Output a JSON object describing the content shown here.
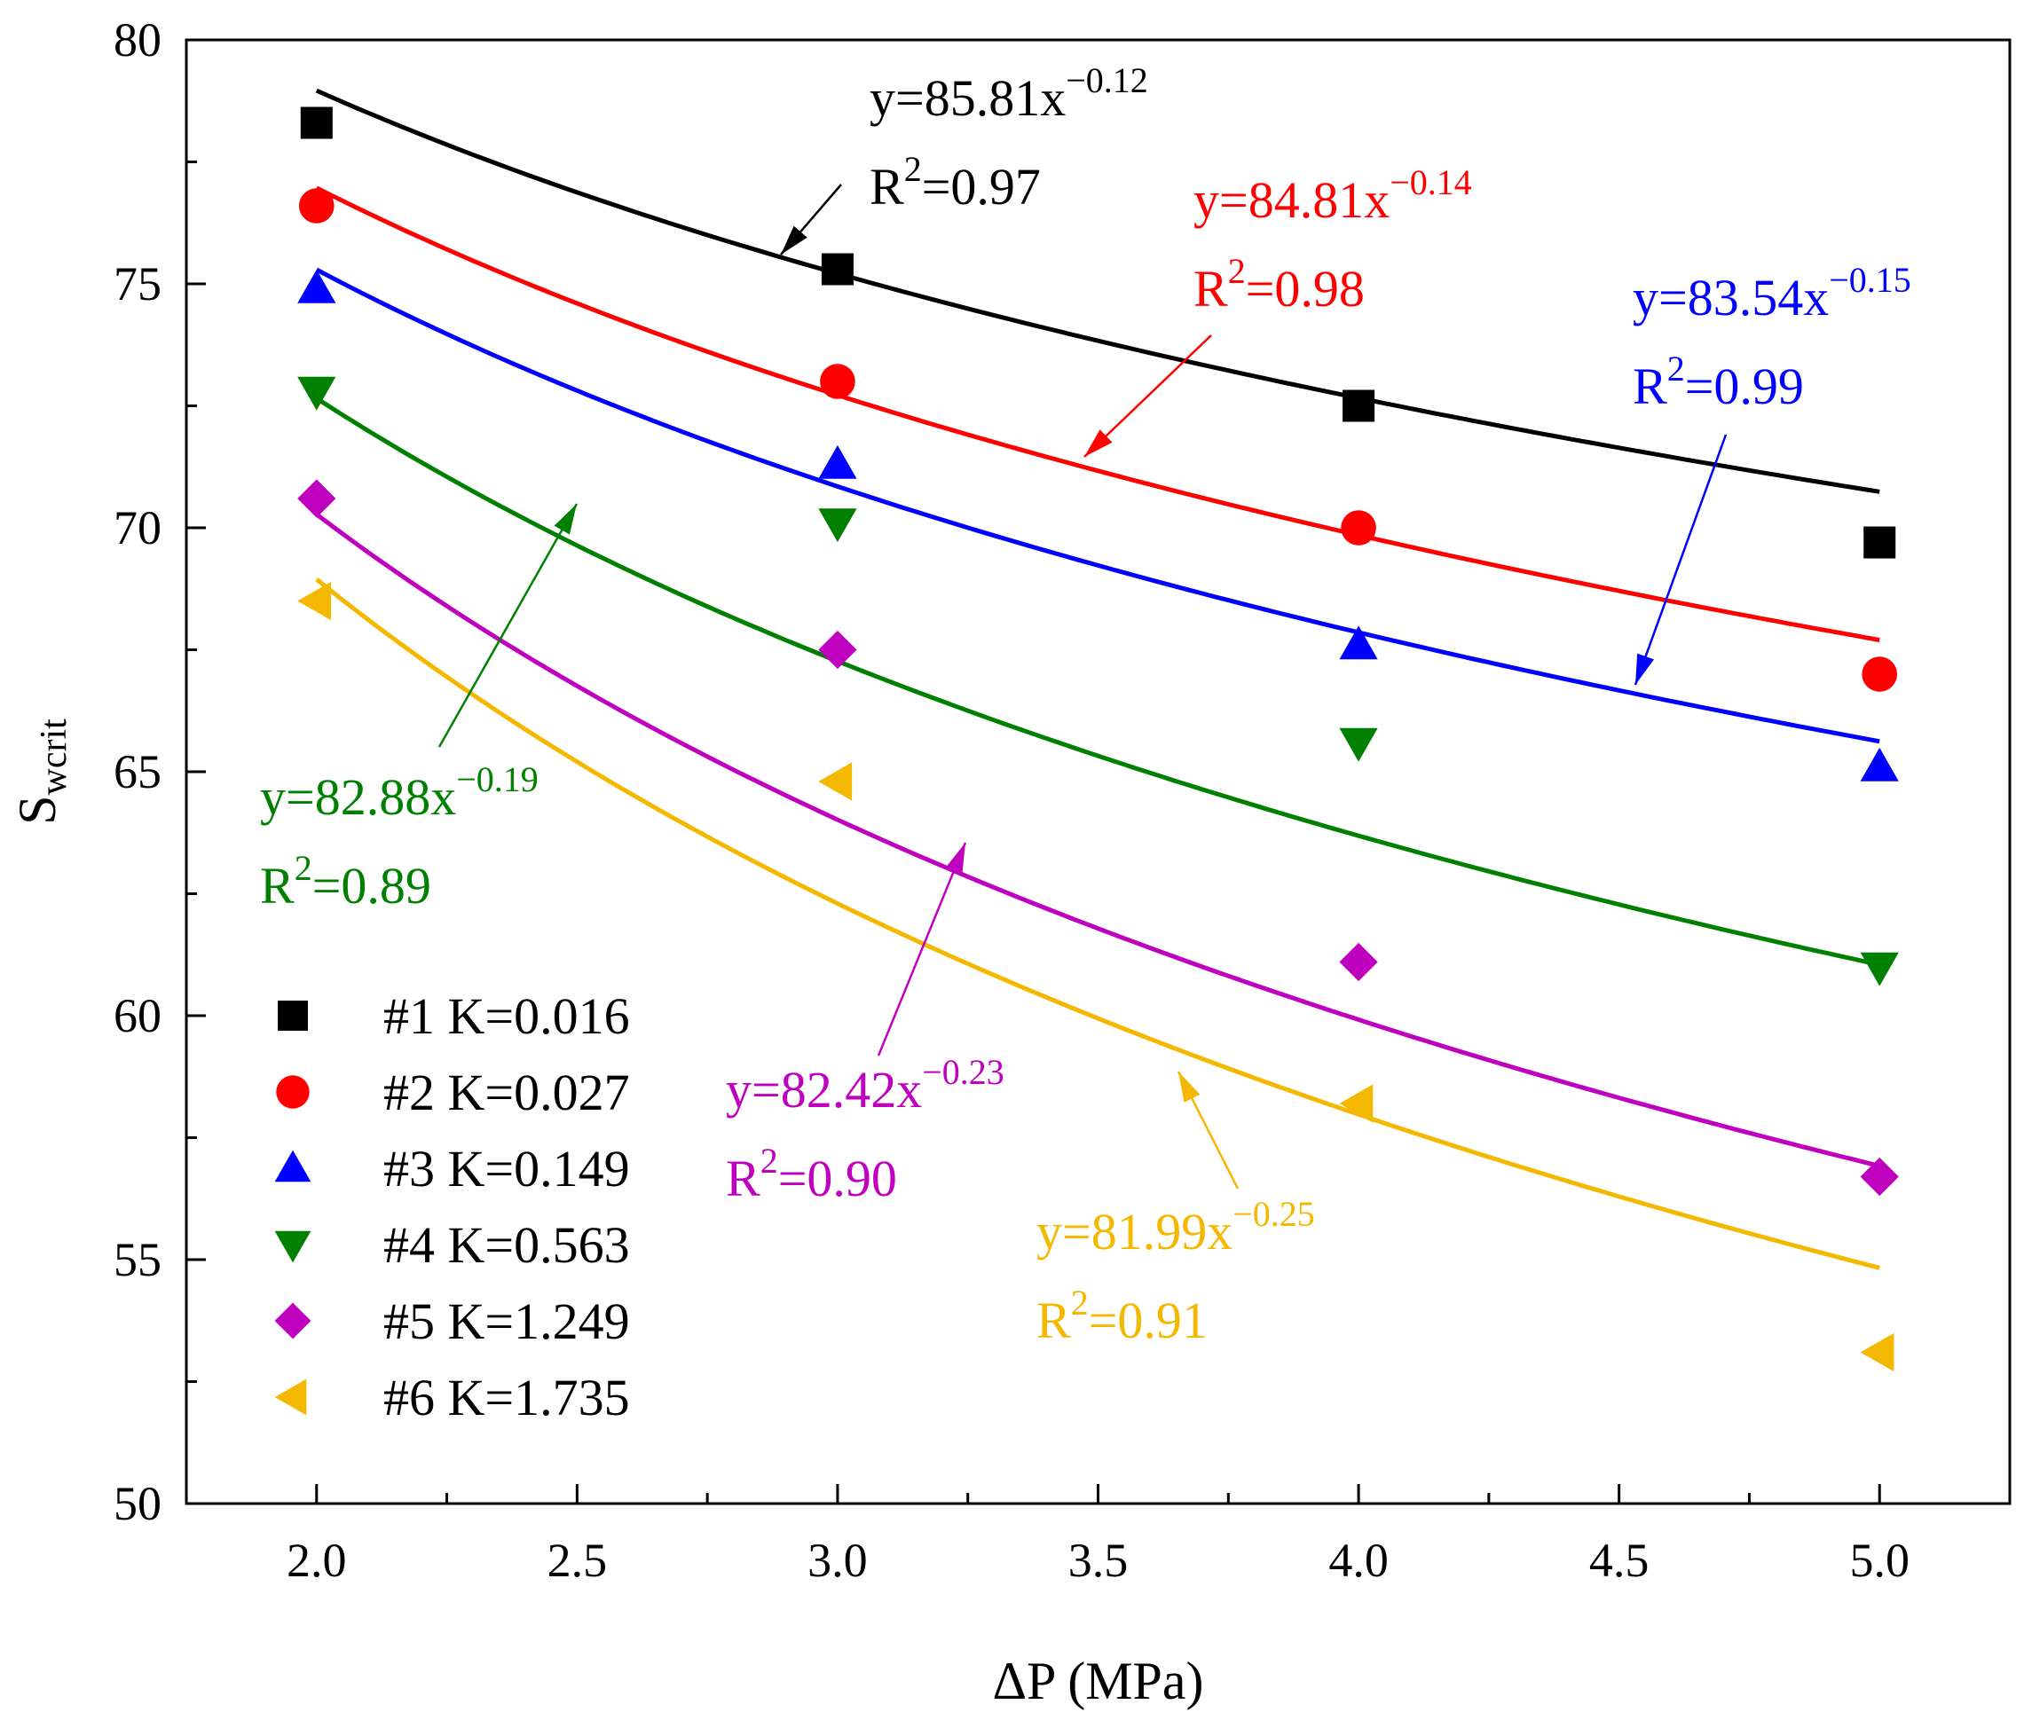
{
  "chart_data": {
    "type": "scatter",
    "xlabel": "ΔP (MPa)",
    "ylabel_main": "S",
    "ylabel_sub": "wcrit",
    "xlim": [
      1.75,
      5.25
    ],
    "ylim": [
      50,
      80
    ],
    "xticks": [
      2.0,
      2.5,
      3.0,
      3.5,
      4.0,
      4.5,
      5.0
    ],
    "xtick_labels": [
      "2.0",
      "2.5",
      "3.0",
      "3.5",
      "4.0",
      "4.5",
      "5.0"
    ],
    "yticks": [
      50,
      55,
      60,
      65,
      70,
      75,
      80
    ],
    "ytick_labels": [
      "50",
      "55",
      "60",
      "65",
      "70",
      "75",
      "80"
    ],
    "legend_position": "bottom-left",
    "series": [
      {
        "id": "s1",
        "name": "#1 K=0.016",
        "color": "#000000",
        "marker": "square",
        "x": [
          2.0,
          3.0,
          4.0,
          5.0
        ],
        "y": [
          78.3,
          75.3,
          72.5,
          69.7
        ],
        "fit": {
          "a": 85.81,
          "b": -0.12
        },
        "eq_prefix": "y=85.81x",
        "eq_exp": "−0.12",
        "r2_prefix": "R",
        "r2_exp": "2",
        "r2_value": "=0.97"
      },
      {
        "id": "s2",
        "name": "#2 K=0.027",
        "color": "#ff0000",
        "marker": "circle",
        "x": [
          2.0,
          3.0,
          4.0,
          5.0
        ],
        "y": [
          76.6,
          73.0,
          70.0,
          67.0
        ],
        "fit": {
          "a": 84.81,
          "b": -0.14
        },
        "eq_prefix": "y=84.81x",
        "eq_exp": "−0.14",
        "r2_prefix": "R",
        "r2_exp": "2",
        "r2_value": "=0.98"
      },
      {
        "id": "s3",
        "name": "#3 K=0.149",
        "color": "#0000ff",
        "marker": "triangle-up",
        "x": [
          2.0,
          3.0,
          4.0,
          5.0
        ],
        "y": [
          74.9,
          71.3,
          67.6,
          65.1
        ],
        "fit": {
          "a": 83.54,
          "b": -0.15
        },
        "eq_prefix": "y=83.54x",
        "eq_exp": "−0.15",
        "r2_prefix": "R",
        "r2_exp": "2",
        "r2_value": "=0.99"
      },
      {
        "id": "s4",
        "name": "#4 K=0.563",
        "color": "#008000",
        "marker": "triangle-down",
        "x": [
          2.0,
          3.0,
          4.0,
          5.0
        ],
        "y": [
          72.8,
          70.1,
          65.6,
          61.0
        ],
        "fit": {
          "a": 82.88,
          "b": -0.19
        },
        "eq_prefix": "y=82.88x",
        "eq_exp": "−0.19",
        "r2_prefix": "R",
        "r2_exp": "2",
        "r2_value": "=0.89"
      },
      {
        "id": "s5",
        "name": "#5 K=1.249",
        "color": "#bf00bf",
        "marker": "diamond",
        "x": [
          2.0,
          3.0,
          4.0,
          5.0
        ],
        "y": [
          70.6,
          67.5,
          61.1,
          56.7
        ],
        "fit": {
          "a": 82.42,
          "b": -0.23
        },
        "eq_prefix": "y=82.42x",
        "eq_exp": "−0.23",
        "r2_prefix": "R",
        "r2_exp": "2",
        "r2_value": "=0.90"
      },
      {
        "id": "s6",
        "name": "#6 K=1.735",
        "color": "#f5b800",
        "marker": "triangle-left",
        "x": [
          2.0,
          3.0,
          4.0,
          5.0
        ],
        "y": [
          68.5,
          64.8,
          58.2,
          53.1
        ],
        "fit": {
          "a": 81.99,
          "b": -0.25
        },
        "eq_prefix": "y=81.99x",
        "eq_exp": "−0.25",
        "r2_prefix": "R",
        "r2_exp": "2",
        "r2_value": "=0.91"
      }
    ]
  }
}
